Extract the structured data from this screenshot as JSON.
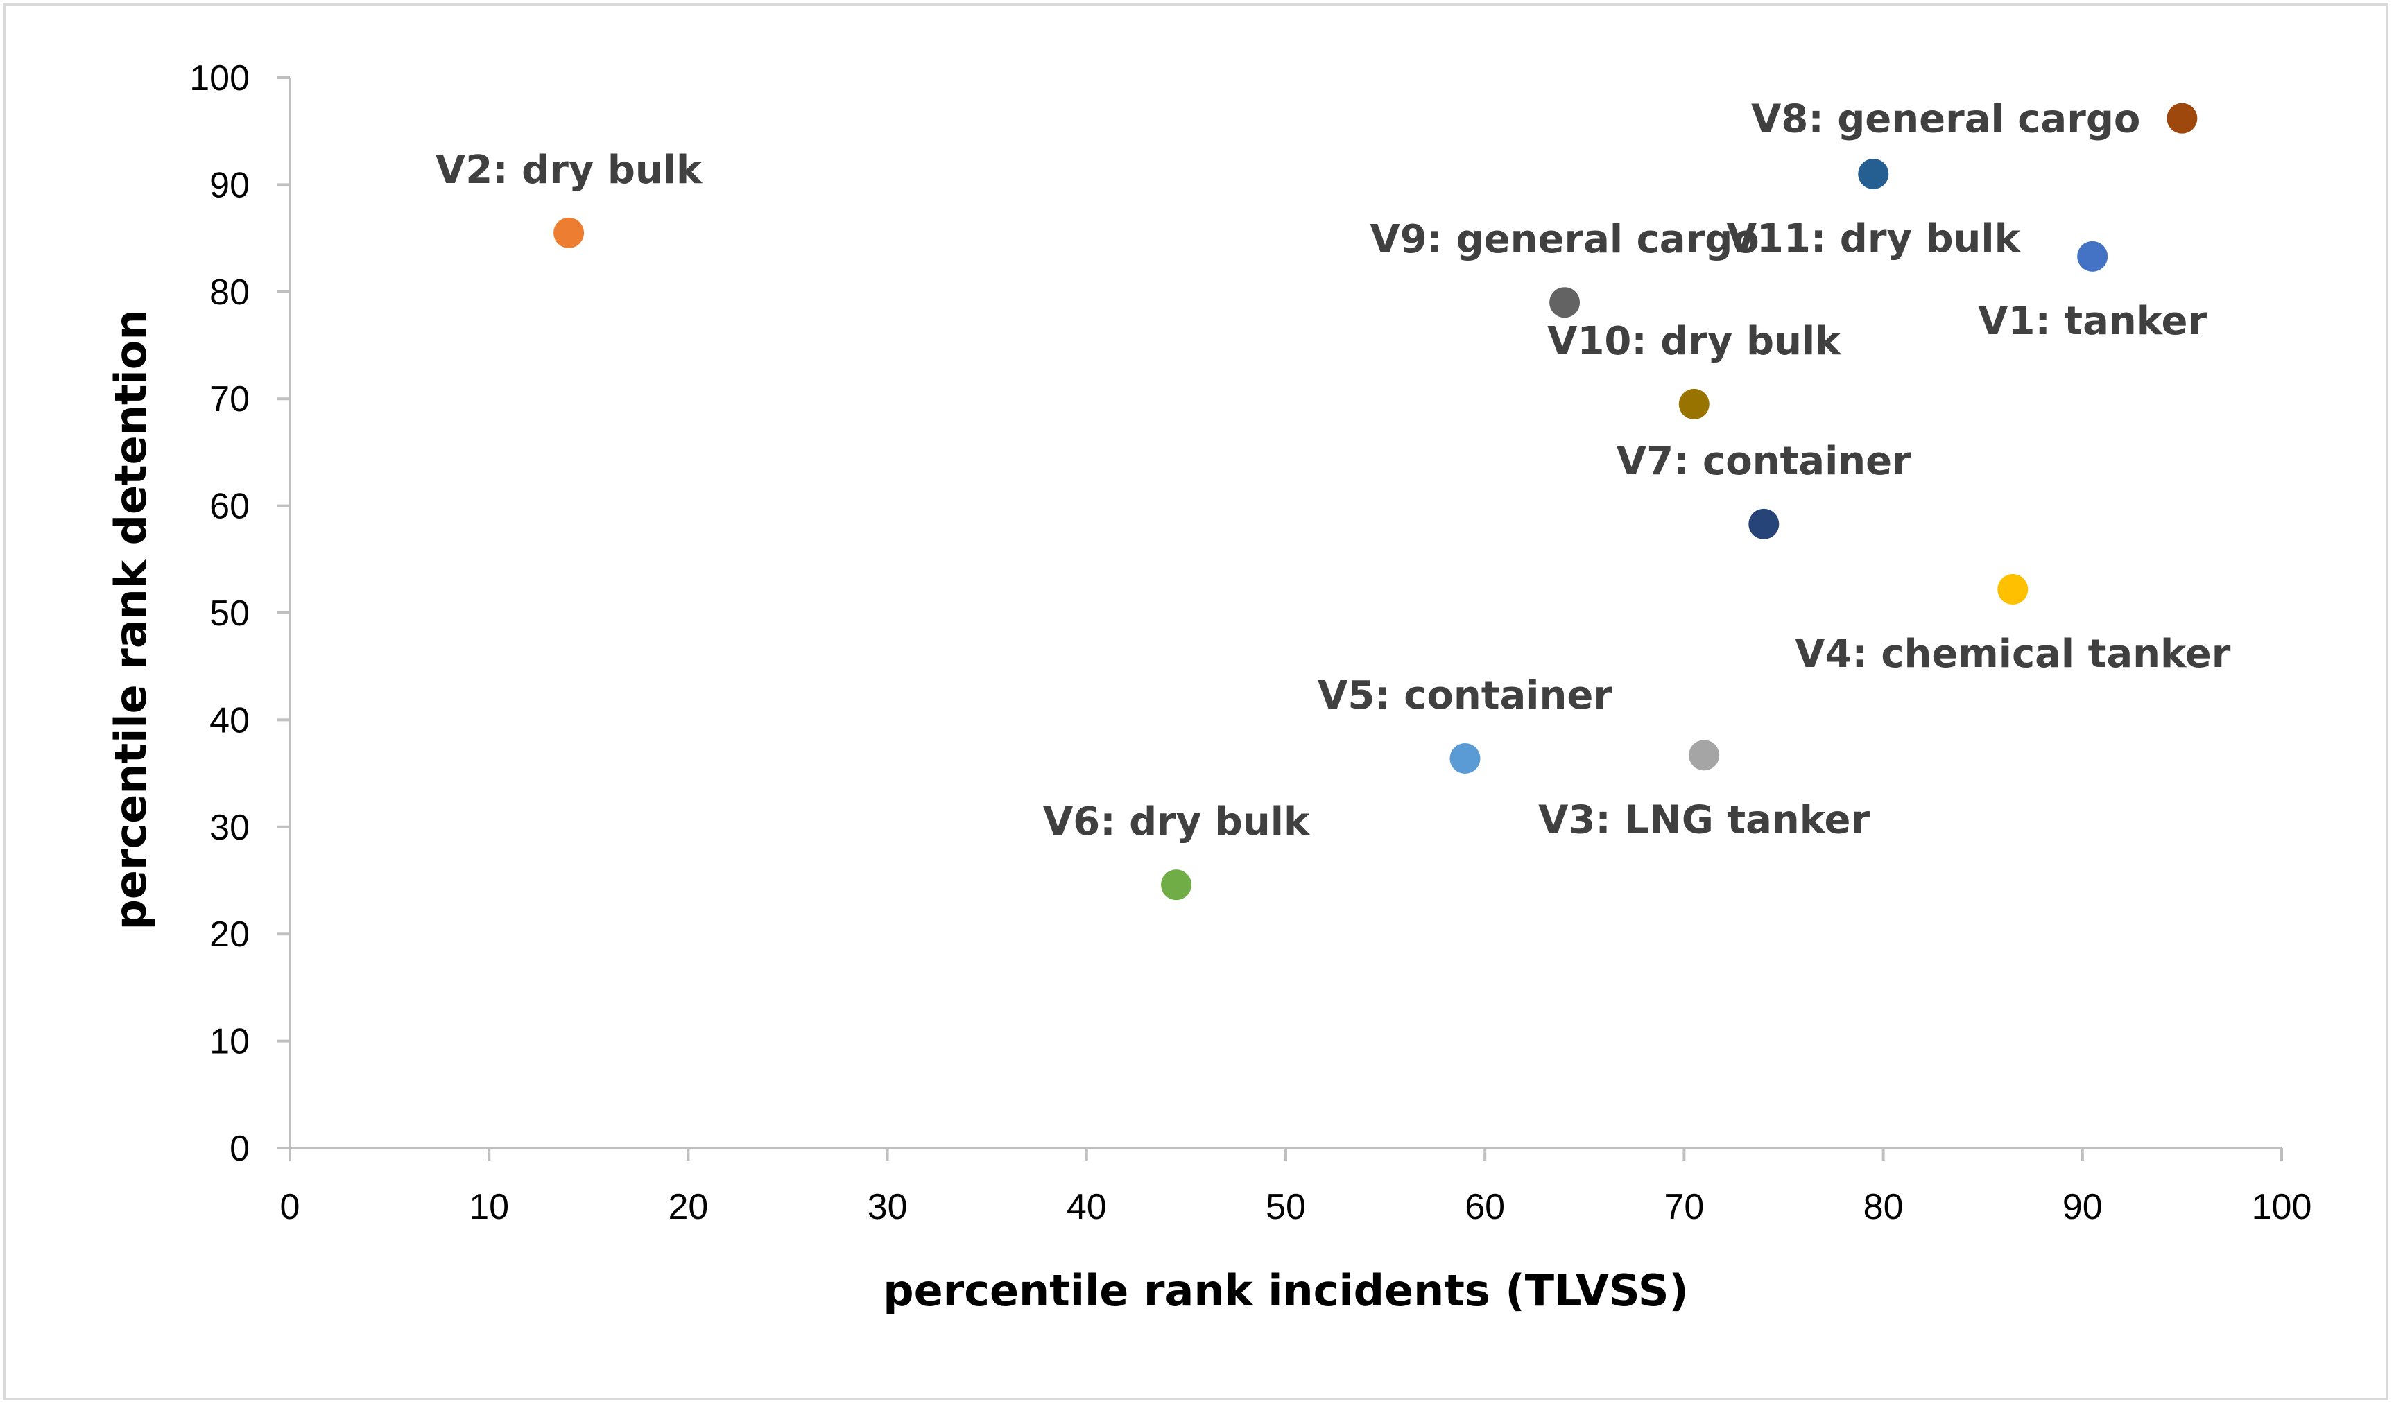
{
  "chart_data": {
    "type": "scatter",
    "title": "",
    "xlabel": "percentile rank incidents (TLVSS)",
    "ylabel": "percentile rank detention",
    "xlim": [
      0,
      100
    ],
    "ylim": [
      0,
      100
    ],
    "x_ticks": [
      "0",
      "10",
      "20",
      "30",
      "40",
      "50",
      "60",
      "70",
      "80",
      "90",
      "100"
    ],
    "y_ticks": [
      "0",
      "10",
      "20",
      "30",
      "40",
      "50",
      "60",
      "70",
      "80",
      "90",
      "100"
    ],
    "grid": false,
    "points": [
      {
        "label": "V1: tanker",
        "x": 90.5,
        "y": 83.3,
        "color": "#4472c4",
        "label_pos": "below"
      },
      {
        "label": "V2: dry bulk",
        "x": 14.0,
        "y": 85.5,
        "color": "#ed7d31",
        "label_pos": "above"
      },
      {
        "label": "V3: LNG tanker",
        "x": 71.0,
        "y": 36.7,
        "color": "#a5a5a5",
        "label_pos": "below"
      },
      {
        "label": "V4: chemical tanker",
        "x": 86.5,
        "y": 52.2,
        "color": "#ffc000",
        "label_pos": "below"
      },
      {
        "label": "V5: container",
        "x": 59.0,
        "y": 36.4,
        "color": "#5b9bd5",
        "label_pos": "above"
      },
      {
        "label": "V6: dry bulk",
        "x": 44.5,
        "y": 24.6,
        "color": "#70ad47",
        "label_pos": "above"
      },
      {
        "label": "V7: container",
        "x": 74.0,
        "y": 58.3,
        "color": "#264478",
        "label_pos": "above"
      },
      {
        "label": "V8: general cargo",
        "x": 95.0,
        "y": 96.2,
        "color": "#9e480e",
        "label_pos": "left"
      },
      {
        "label": "V9: general cargo",
        "x": 64.0,
        "y": 79.0,
        "color": "#636363",
        "label_pos": "above"
      },
      {
        "label": "V10: dry bulk",
        "x": 70.5,
        "y": 69.5,
        "color": "#997300",
        "label_pos": "above"
      },
      {
        "label": "V11: dry bulk",
        "x": 79.5,
        "y": 91.0,
        "color": "#255e91",
        "label_pos": "below"
      }
    ]
  }
}
